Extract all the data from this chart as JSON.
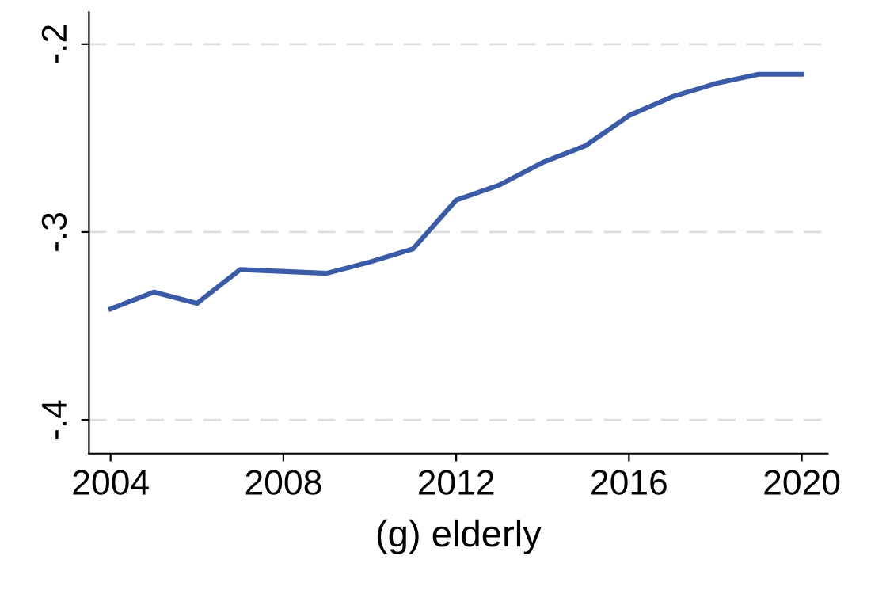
{
  "chart_data": {
    "type": "line",
    "xlabel": "(g) elderly",
    "x": [
      2004,
      2005,
      2006,
      2007,
      2009,
      2010,
      2011,
      2012,
      2013,
      2014,
      2015,
      2016,
      2017,
      2018,
      2019,
      2020
    ],
    "series": [
      {
        "color": "#3a5ca8",
        "values": [
          -0.341,
          -0.332,
          -0.338,
          -0.32,
          -0.322,
          -0.316,
          -0.309,
          -0.283,
          -0.275,
          -0.263,
          -0.254,
          -0.238,
          -0.228,
          -0.221,
          -0.216,
          -0.216
        ]
      }
    ],
    "xlim": [
      2003.5,
      2020.6
    ],
    "xticks": [
      2004,
      2008,
      2012,
      2016,
      2020
    ],
    "ylim": [
      -0.418,
      -0.183
    ],
    "yticks": [
      {
        "value": -0.4,
        "label": "-.4"
      },
      {
        "value": -0.3,
        "label": "-.3"
      },
      {
        "value": -0.2,
        "label": "-.2"
      }
    ],
    "grid": "y",
    "legend": false
  }
}
